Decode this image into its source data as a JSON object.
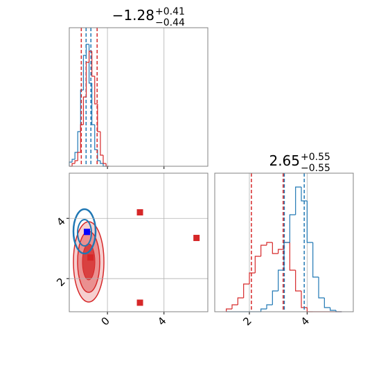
{
  "chart_data": [
    {
      "type": "histogram",
      "title": "−1.28",
      "title_upper": "+0.41",
      "title_lower": "−0.44",
      "xlim": [
        -2.7,
        7.1
      ],
      "ylim": [
        0,
        1
      ],
      "xticks": [
        0,
        4
      ],
      "xtick_labels": false,
      "grid": true,
      "bins": [
        -2.7,
        -2.5,
        -2.3,
        -2.1,
        -1.9,
        -1.7,
        -1.5,
        -1.3,
        -1.1,
        -0.9,
        -0.7,
        -0.5,
        -0.3,
        -0.1,
        0.1
      ],
      "series": [
        {
          "name": "blue",
          "color": "#1f77b4",
          "values": [
            0.03,
            0.05,
            0.1,
            0.25,
            0.55,
            0.8,
            0.88,
            0.6,
            0.3,
            0.12,
            0.04,
            0.02,
            0,
            0
          ],
          "quantiles": [
            -1.51,
            -1.17
          ]
        },
        {
          "name": "red",
          "color": "#d62728",
          "values": [
            0,
            0.02,
            0.04,
            0.1,
            0.3,
            0.5,
            0.75,
            0.83,
            0.65,
            0.45,
            0.25,
            0.08,
            0.02,
            0
          ],
          "quantiles": [
            -1.85,
            -0.73
          ]
        }
      ]
    },
    {
      "type": "scatter",
      "xlim": [
        -2.7,
        7.1
      ],
      "ylim": [
        0.9,
        5.5
      ],
      "xticks": [
        0,
        4
      ],
      "yticks": [
        2,
        4
      ],
      "grid": true,
      "series": [
        {
          "name": "red",
          "color": "#d62728",
          "x": [
            2.3,
            6.3,
            2.3,
            -1.2
          ],
          "values": [
            4.2,
            3.35,
            1.2,
            2.7
          ]
        },
        {
          "name": "blue",
          "color": "#0000ff",
          "x": [
            -1.45
          ],
          "values": [
            3.55
          ]
        }
      ]
    },
    {
      "type": "histogram",
      "title": "2.65",
      "title_upper": "+0.55",
      "title_lower": "−0.55",
      "xlim": [
        0.8,
        5.6
      ],
      "ylim": [
        0,
        1
      ],
      "xticks": [
        2,
        4
      ],
      "grid": true,
      "bins": [
        1.2,
        1.4,
        1.6,
        1.8,
        2.0,
        2.2,
        2.4,
        2.6,
        2.8,
        3.0,
        3.2,
        3.4,
        3.6,
        3.8,
        4.0,
        4.2,
        4.4,
        4.6,
        4.8,
        5.0,
        5.2
      ],
      "series": [
        {
          "name": "red",
          "color": "#d62728",
          "values": [
            0.02,
            0.05,
            0.1,
            0.2,
            0.28,
            0.4,
            0.48,
            0.5,
            0.42,
            0.45,
            0.5,
            0.3,
            0.15,
            0.03,
            0,
            0,
            0,
            0,
            0,
            0
          ],
          "quantiles": [
            2.07,
            3.17
          ]
        },
        {
          "name": "blue",
          "color": "#1f77b4",
          "values": [
            0,
            0,
            0,
            0,
            0,
            0,
            0.02,
            0.05,
            0.15,
            0.3,
            0.5,
            0.7,
            0.9,
            0.8,
            0.5,
            0.25,
            0.1,
            0.03,
            0.01,
            0
          ],
          "quantiles": [
            3.21,
            3.9
          ]
        }
      ]
    }
  ]
}
